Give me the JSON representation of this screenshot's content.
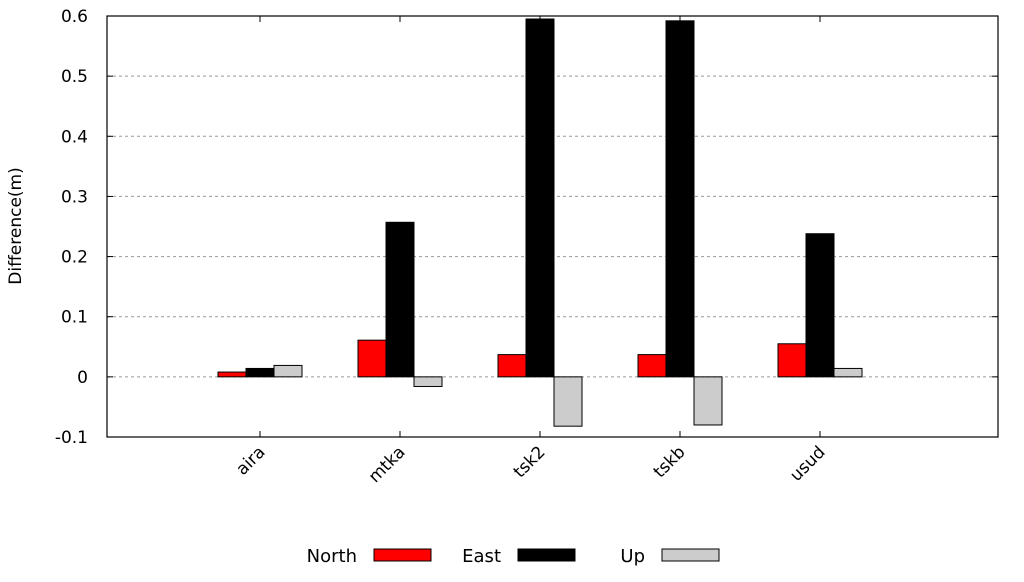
{
  "chart_data": {
    "type": "bar",
    "title": "",
    "xlabel": "",
    "ylabel": "Difference(m)",
    "categories": [
      "aira",
      "mtka",
      "tsk2",
      "tskb",
      "usud"
    ],
    "series": [
      {
        "name": "North",
        "color": "#ff0000",
        "values": [
          0.008,
          0.061,
          0.037,
          0.037,
          0.055
        ]
      },
      {
        "name": "East",
        "color": "#000000",
        "values": [
          0.014,
          0.257,
          0.595,
          0.592,
          0.238
        ]
      },
      {
        "name": "Up",
        "color": "#cccccc",
        "values": [
          0.019,
          -0.016,
          -0.082,
          -0.08,
          0.014
        ]
      }
    ],
    "ylim": [
      -0.1,
      0.6
    ],
    "yticks": [
      -0.1,
      0,
      0.1,
      0.2,
      0.3,
      0.4,
      0.5,
      0.6
    ],
    "ytick_labels": [
      "-0.1",
      "0",
      "0.1",
      "0.2",
      "0.3",
      "0.4",
      "0.5",
      "0.6"
    ],
    "grid": "horizontal-dashed",
    "legend": "bottom"
  }
}
